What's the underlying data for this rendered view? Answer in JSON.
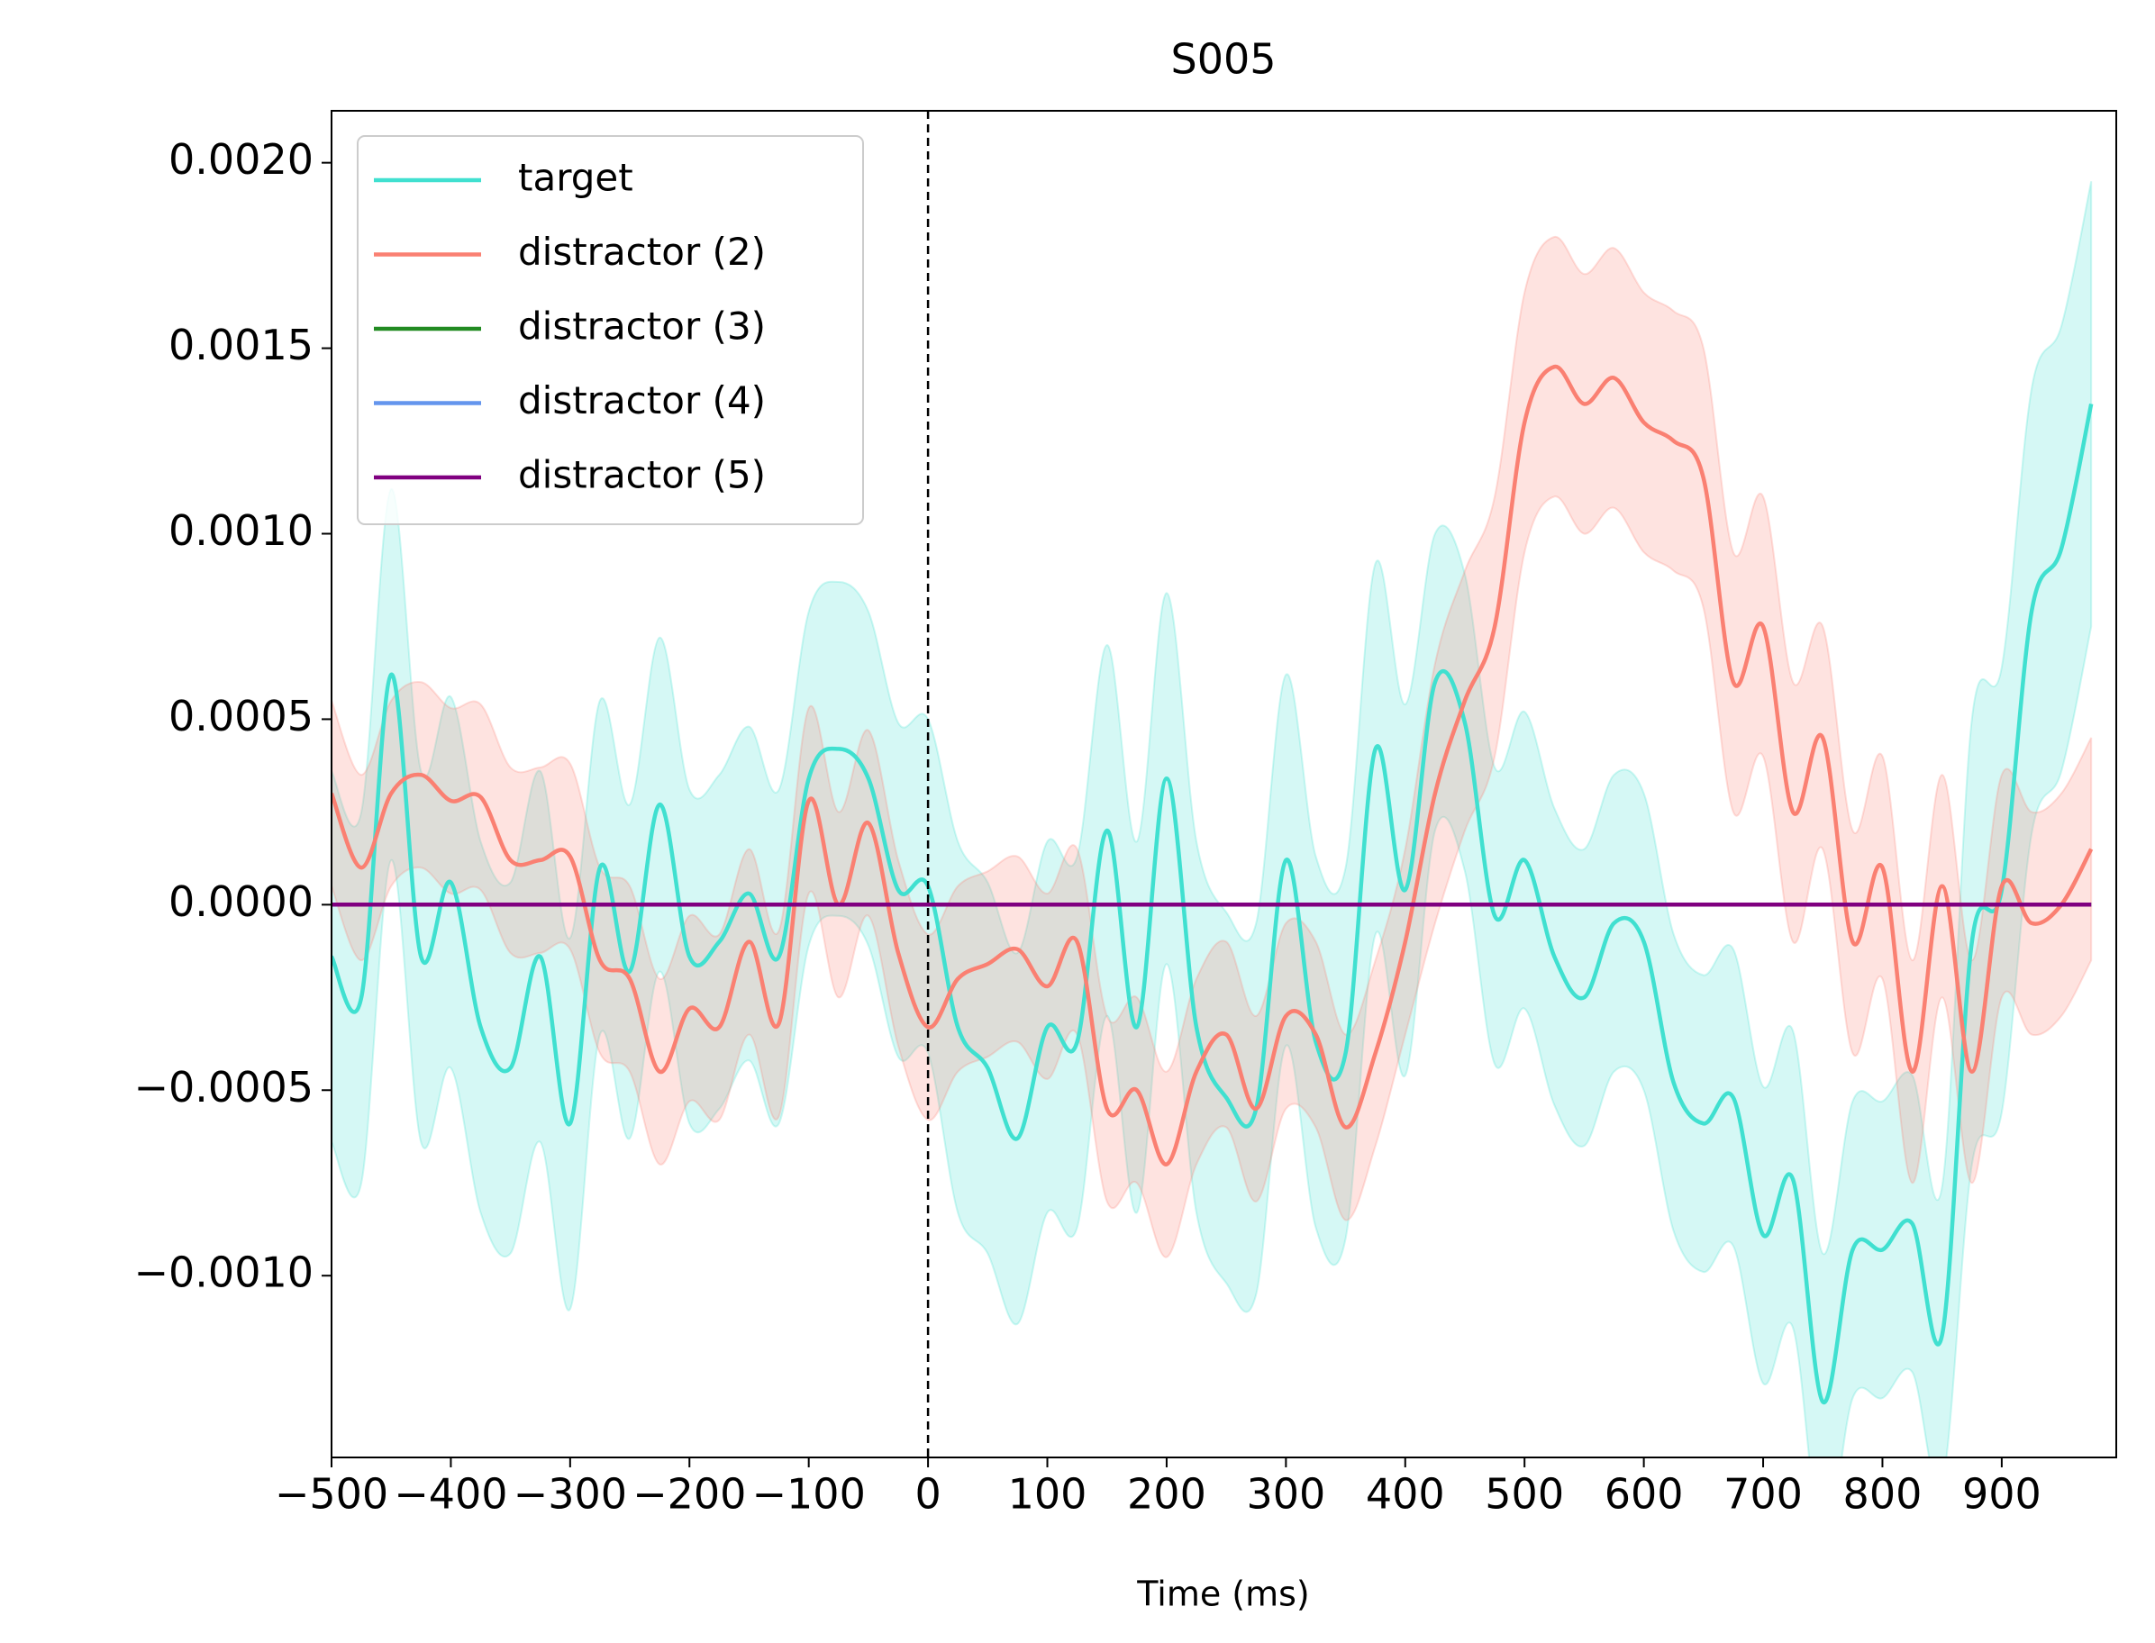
{
  "chart_data": {
    "type": "line",
    "title": "S005",
    "xlabel": "Time (ms)",
    "x": [
      -500,
      -475,
      -450,
      -425,
      -400,
      -375,
      -350,
      -325,
      -300,
      -275,
      -250,
      -225,
      -200,
      -175,
      -150,
      -125,
      -100,
      -75,
      -50,
      -25,
      0,
      25,
      50,
      75,
      100,
      125,
      150,
      175,
      200,
      225,
      250,
      275,
      300,
      325,
      350,
      375,
      400,
      425,
      450,
      475,
      500,
      525,
      550,
      575,
      600,
      625,
      650,
      675,
      700,
      725,
      750,
      775,
      800,
      825,
      850,
      875,
      900,
      925,
      950,
      975
    ],
    "series": [
      {
        "name": "target",
        "color": "#40e0d0",
        "values": [
          -0.00014,
          -0.00025,
          0.00062,
          -0.00014,
          6e-05,
          -0.00033,
          -0.00044,
          -0.00014,
          -0.00059,
          0.0001,
          -0.00018,
          0.00027,
          -0.00014,
          -0.0001,
          3e-05,
          -0.00014,
          0.00034,
          0.00042,
          0.00034,
          4e-05,
          5e-05,
          -0.00033,
          -0.00044,
          -0.00063,
          -0.00033,
          -0.00037,
          0.0002,
          -0.00033,
          0.00034,
          -0.00033,
          -0.00052,
          -0.00055,
          0.00012,
          -0.00037,
          -0.0004,
          0.00042,
          4e-05,
          0.0006,
          0.00049,
          -3e-05,
          0.00012,
          -0.00014,
          -0.00025,
          -5e-05,
          -0.0001,
          -0.00048,
          -0.00059,
          -0.00052,
          -0.00089,
          -0.00074,
          -0.00134,
          -0.00093,
          -0.00093,
          -0.00086,
          -0.00116,
          -0.0001,
          4e-05,
          0.00079,
          0.00096,
          0.00135
        ],
        "lower": [
          -0.00064,
          -0.00075,
          0.00012,
          -0.00064,
          -0.00044,
          -0.00083,
          -0.00094,
          -0.00064,
          -0.00109,
          -0.00035,
          -0.00063,
          -0.00018,
          -0.00059,
          -0.00055,
          -0.00042,
          -0.00059,
          -0.00011,
          -3e-05,
          -0.00011,
          -0.00041,
          -0.0004,
          -0.00083,
          -0.00094,
          -0.00113,
          -0.00083,
          -0.00087,
          -0.0003,
          -0.00083,
          -0.00016,
          -0.00083,
          -0.00102,
          -0.00105,
          -0.00038,
          -0.00087,
          -0.0009,
          -8e-05,
          -0.00046,
          0.0002,
          9e-05,
          -0.00043,
          -0.00028,
          -0.00054,
          -0.00065,
          -0.00045,
          -0.0005,
          -0.00088,
          -0.00099,
          -0.00092,
          -0.00129,
          -0.00114,
          -0.00174,
          -0.00133,
          -0.00133,
          -0.00126,
          -0.00156,
          -0.0007,
          -0.00056,
          0.00019,
          0.00036,
          0.00075
        ],
        "upper": [
          0.00036,
          0.00025,
          0.00112,
          0.00036,
          0.00056,
          0.00017,
          6e-05,
          0.00036,
          -9e-05,
          0.00055,
          0.00027,
          0.00072,
          0.00031,
          0.00035,
          0.00048,
          0.00031,
          0.00079,
          0.00087,
          0.00079,
          0.00049,
          0.0005,
          0.00017,
          6e-05,
          -0.00013,
          0.00017,
          0.00013,
          0.0007,
          0.00017,
          0.00084,
          0.00017,
          -2e-05,
          -5e-05,
          0.00062,
          0.00013,
          0.0001,
          0.00092,
          0.00054,
          0.001,
          0.00089,
          0.00037,
          0.00052,
          0.00026,
          0.00015,
          0.00035,
          0.0003,
          -8e-05,
          -0.00019,
          -0.00012,
          -0.00049,
          -0.00034,
          -0.00094,
          -0.00053,
          -0.00053,
          -0.00046,
          -0.00076,
          0.0005,
          0.00064,
          0.00139,
          0.00156,
          0.00195
        ]
      },
      {
        "name": "distractor (2)",
        "color": "#fa8072",
        "values": [
          0.0003,
          0.0001,
          0.0003,
          0.00035,
          0.00028,
          0.00029,
          0.00012,
          0.00012,
          0.00013,
          -0.00015,
          -0.0002,
          -0.00045,
          -0.00028,
          -0.00033,
          -0.0001,
          -0.00032,
          0.00028,
          0,
          0.00022,
          -0.00013,
          -0.00033,
          -0.0002,
          -0.00016,
          -0.00012,
          -0.00022,
          -0.0001,
          -0.00055,
          -0.0005,
          -0.0007,
          -0.00045,
          -0.00035,
          -0.00055,
          -0.0003,
          -0.00035,
          -0.0006,
          -0.0004,
          -0.0001,
          0.0003,
          0.00055,
          0.00075,
          0.0013,
          0.00145,
          0.00135,
          0.00142,
          0.0013,
          0.00125,
          0.00115,
          0.0006,
          0.00075,
          0.00025,
          0.00045,
          -0.0001,
          0.0001,
          -0.00045,
          5e-05,
          -0.00045,
          5e-05,
          -5e-05,
          0,
          0.00015
        ],
        "lower": [
          5e-05,
          -0.00015,
          5e-05,
          0.0001,
          3e-05,
          4e-05,
          -0.00013,
          -0.00013,
          -0.00012,
          -0.0004,
          -0.00045,
          -0.0007,
          -0.00053,
          -0.00058,
          -0.00035,
          -0.00057,
          3e-05,
          -0.00025,
          -3e-05,
          -0.00038,
          -0.00058,
          -0.00045,
          -0.00041,
          -0.00037,
          -0.00047,
          -0.00035,
          -0.0008,
          -0.00075,
          -0.00095,
          -0.0007,
          -0.0006,
          -0.0008,
          -0.00055,
          -0.0006,
          -0.00085,
          -0.00065,
          -0.00035,
          -5e-05,
          0.0002,
          0.0004,
          0.00095,
          0.0011,
          0.001,
          0.00107,
          0.00095,
          0.0009,
          0.0008,
          0.00025,
          0.0004,
          -0.0001,
          0.00015,
          -0.0004,
          -0.0002,
          -0.00075,
          -0.00025,
          -0.00075,
          -0.00025,
          -0.00035,
          -0.0003,
          -0.00015
        ],
        "upper": [
          0.00055,
          0.00035,
          0.00055,
          0.0006,
          0.00053,
          0.00054,
          0.00037,
          0.00037,
          0.00038,
          0.0001,
          5e-05,
          -0.0002,
          -3e-05,
          -8e-05,
          0.00015,
          -7e-05,
          0.00053,
          0.00025,
          0.00047,
          0.00012,
          -8e-05,
          5e-05,
          9e-05,
          0.00013,
          3e-05,
          0.00015,
          -0.0003,
          -0.00025,
          -0.00045,
          -0.0002,
          -0.0001,
          -0.0003,
          -5e-05,
          -0.0001,
          -0.00035,
          -0.00015,
          0.00015,
          0.00065,
          0.0009,
          0.0011,
          0.00165,
          0.0018,
          0.0017,
          0.00177,
          0.00165,
          0.0016,
          0.0015,
          0.00095,
          0.0011,
          0.0006,
          0.00075,
          0.0002,
          0.0004,
          -0.00015,
          0.00035,
          -0.00015,
          0.00035,
          0.00025,
          0.0003,
          0.00045
        ]
      },
      {
        "name": "distractor (3)",
        "color": "#228b22",
        "values": [
          0,
          0,
          0,
          0,
          0,
          0,
          0,
          0,
          0,
          0,
          0,
          0,
          0,
          0,
          0,
          0,
          0,
          0,
          0,
          0,
          0,
          0,
          0,
          0,
          0,
          0,
          0,
          0,
          0,
          0,
          0,
          0,
          0,
          0,
          0,
          0,
          0,
          0,
          0,
          0,
          0,
          0,
          0,
          0,
          0,
          0,
          0,
          0,
          0,
          0,
          0,
          0,
          0,
          0,
          0,
          0,
          0,
          0,
          0,
          0
        ]
      },
      {
        "name": "distractor (4)",
        "color": "#6495ed",
        "values": [
          0,
          0,
          0,
          0,
          0,
          0,
          0,
          0,
          0,
          0,
          0,
          0,
          0,
          0,
          0,
          0,
          0,
          0,
          0,
          0,
          0,
          0,
          0,
          0,
          0,
          0,
          0,
          0,
          0,
          0,
          0,
          0,
          0,
          0,
          0,
          0,
          0,
          0,
          0,
          0,
          0,
          0,
          0,
          0,
          0,
          0,
          0,
          0,
          0,
          0,
          0,
          0,
          0,
          0,
          0,
          0,
          0,
          0,
          0,
          0
        ]
      },
      {
        "name": "distractor (5)",
        "color": "#800080",
        "values": [
          0,
          0,
          0,
          0,
          0,
          0,
          0,
          0,
          0,
          0,
          0,
          0,
          0,
          0,
          0,
          0,
          0,
          0,
          0,
          0,
          0,
          0,
          0,
          0,
          0,
          0,
          0,
          0,
          0,
          0,
          0,
          0,
          0,
          0,
          0,
          0,
          0,
          0,
          0,
          0,
          0,
          0,
          0,
          0,
          0,
          0,
          0,
          0,
          0,
          0,
          0,
          0,
          0,
          0,
          0,
          0,
          0,
          0,
          0,
          0
        ]
      }
    ],
    "vline": 0,
    "xlim": [
      -500,
      996
    ],
    "xticks": [
      {
        "value": -500,
        "label": "−500"
      },
      {
        "value": -400,
        "label": "−400"
      },
      {
        "value": -300,
        "label": "−300"
      },
      {
        "value": -200,
        "label": "−200"
      },
      {
        "value": -100,
        "label": "−100"
      },
      0,
      100,
      200,
      300,
      400,
      500,
      600,
      700,
      800,
      900
    ],
    "ylim": [
      -0.00149,
      0.00214
    ],
    "yticks": [
      {
        "value": -0.001,
        "label": "−0.0010"
      },
      {
        "value": -0.0005,
        "label": "−0.0005"
      },
      {
        "value": 0,
        "label": "0.0000"
      },
      {
        "value": 0.0005,
        "label": "0.0005"
      },
      {
        "value": 0.001,
        "label": "0.0010"
      },
      {
        "value": 0.0015,
        "label": "0.0015"
      },
      {
        "value": 0.002,
        "label": "0.0020"
      }
    ],
    "legend": "upper left"
  }
}
